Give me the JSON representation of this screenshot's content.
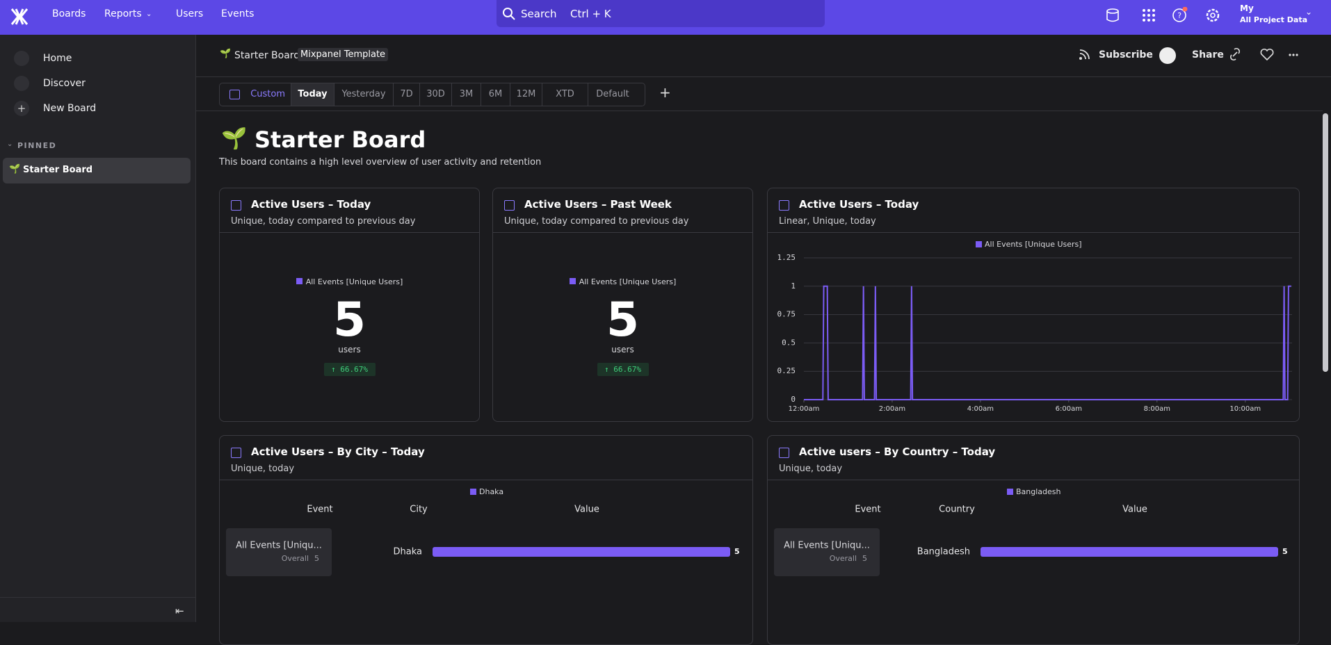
{
  "nav": {
    "items": [
      "Boards",
      "Reports",
      "Users",
      "Events"
    ],
    "search": "Search",
    "shortcut": "Ctrl + K",
    "project_top": "My",
    "project": "All Project Data"
  },
  "sidebar": {
    "items": [
      "Home",
      "Discover",
      "New Board"
    ],
    "section": "PINNED",
    "pinned": [
      "Starter Board"
    ]
  },
  "header": {
    "breadcrumb": "Starter Board",
    "badge": "Mixpanel Template",
    "actions": [
      "Subscribe",
      "Share"
    ]
  },
  "date_filters": [
    "Custom",
    "Today",
    "Yesterday",
    "7D",
    "30D",
    "3M",
    "6M",
    "12M",
    "XTD",
    "Default"
  ],
  "board": {
    "title": "Starter Board",
    "description": "This board contains a high level overview of user activity and retention"
  },
  "cards": [
    {
      "title": "Active Users – Today",
      "subtitle": "Unique, today compared to previous day",
      "legend": "All Events [Unique Users]",
      "value": 5,
      "unit": "users",
      "change": "↑ 66.67%"
    },
    {
      "title": "Active Users – Past Week",
      "subtitle": "Unique, today compared to previous day",
      "legend": "All Events [Unique Users]",
      "value": 5,
      "unit": "users",
      "change": "↑ 66.67%"
    },
    {
      "title": "Active Users – Today",
      "subtitle": "Linear, Unique, today",
      "chart_data": {
        "type": "line",
        "x": [
          0,
          0.43,
          0.45,
          0.53,
          0.55,
          1.33,
          1.35,
          1.37,
          1.6,
          1.62,
          1.64,
          2.42,
          2.44,
          2.46,
          10.86,
          10.88,
          10.9,
          10.96,
          10.98,
          11.04
        ],
        "series": [
          {
            "name": "All Events [Unique Users]",
            "color": "#7b5cf5",
            "values": [
              0,
              0,
              1,
              1,
              0,
              0,
              1,
              0,
              0,
              1,
              0,
              0,
              1,
              0,
              0,
              1,
              0,
              0,
              1,
              1
            ]
          }
        ],
        "xlim": [
          0,
          11.06
        ],
        "xticks": [
          {
            "value": 0,
            "label": "12:00am"
          },
          {
            "value": 2,
            "label": "2:00am"
          },
          {
            "value": 4,
            "label": "4:00am"
          },
          {
            "value": 6,
            "label": "6:00am"
          },
          {
            "value": 8,
            "label": "8:00am"
          },
          {
            "value": 10,
            "label": "10:00am"
          }
        ],
        "ylim": [
          0,
          1.25
        ],
        "yticks": [
          0,
          0.25,
          0.5,
          0.75,
          1,
          1.25
        ],
        "grid": true
      }
    },
    {
      "title": "Active Users – By City – Today",
      "subtitle": "Unique, today",
      "columns": [
        "Event",
        "City",
        "Value"
      ],
      "event": "All Events [Uniqu...",
      "event_sub": "Overall",
      "event_total": 5,
      "chart_data": {
        "type": "bar",
        "categories": [
          "Dhaka"
        ],
        "series": [
          {
            "name": "Dhaka",
            "color": "#7b5cf5",
            "values": [
              5
            ]
          }
        ],
        "xlim": [
          0,
          5
        ]
      }
    },
    {
      "title": "Active users – By Country – Today",
      "subtitle": "Unique, today",
      "columns": [
        "Event",
        "Country",
        "Value"
      ],
      "event": "All Events [Uniqu...",
      "event_sub": "Overall",
      "event_total": 5,
      "chart_data": {
        "type": "bar",
        "categories": [
          "Bangladesh"
        ],
        "series": [
          {
            "name": "Bangladesh",
            "color": "#7b5cf5",
            "values": [
              5
            ]
          }
        ],
        "xlim": [
          0,
          5
        ]
      }
    }
  ]
}
